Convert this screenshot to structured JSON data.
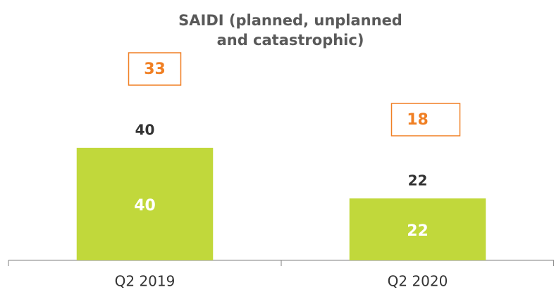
{
  "chart_data": {
    "type": "bar",
    "title": [
      "SAIDI (planned, unplanned",
      "and catastrophic)"
    ],
    "categories": [
      "Q2 2019",
      "Q2 2020"
    ],
    "values": [
      40,
      22
    ],
    "color": "#c1d83b",
    "annotations": [
      33,
      18
    ],
    "annotation_color": "#f07f23",
    "ylim": [
      0,
      80
    ]
  }
}
